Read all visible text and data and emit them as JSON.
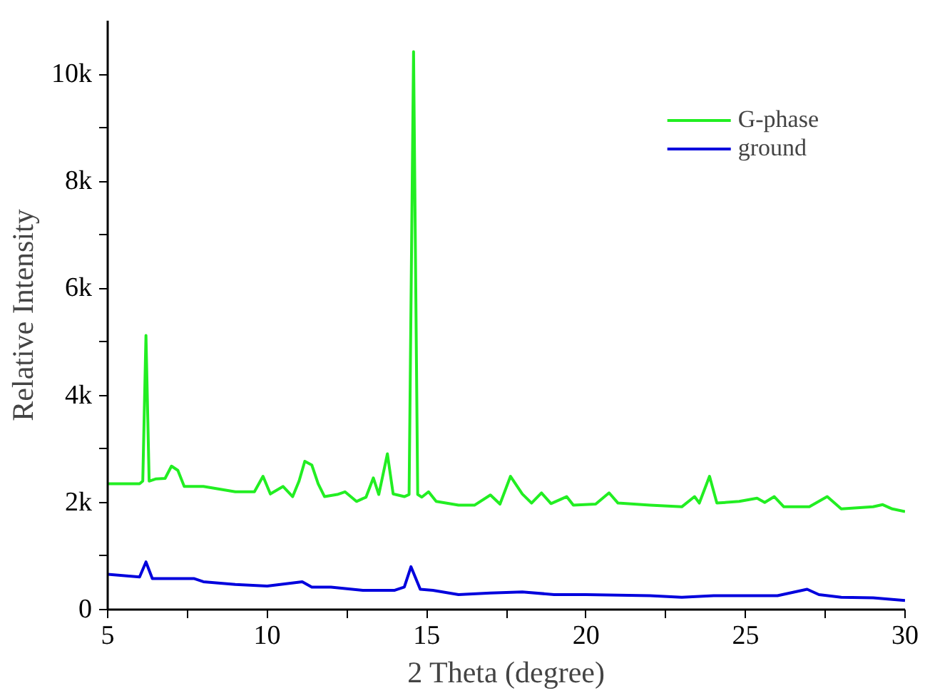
{
  "chart_data": {
    "type": "line",
    "xlabel": "2 Theta (degree)",
    "ylabel": "Relative Intensity",
    "xlim": [
      5,
      30
    ],
    "ylim": [
      0,
      11000
    ],
    "xticks": [
      5,
      {
        "value": 7.5,
        "label": null
      },
      10,
      {
        "value": 12.5,
        "label": null
      },
      15,
      {
        "value": 17.5,
        "label": null
      },
      20,
      {
        "value": 22.5,
        "label": null
      },
      25,
      {
        "value": 27.5,
        "label": null
      },
      30
    ],
    "yticks": [
      0,
      {
        "value": 1000,
        "label": null
      },
      {
        "value": 2000,
        "label": "2k"
      },
      {
        "value": 3000,
        "label": null
      },
      {
        "value": 4000,
        "label": "4k"
      },
      {
        "value": 5000,
        "label": null
      },
      {
        "value": 6000,
        "label": "6k"
      },
      {
        "value": 7000,
        "label": null
      },
      {
        "value": 8000,
        "label": "8k"
      },
      {
        "value": 9000,
        "label": null
      },
      {
        "value": 10000,
        "label": "10k"
      }
    ],
    "grid": false,
    "legend": "top right",
    "line_style": "solid",
    "marker": "none",
    "series": [
      {
        "name": "G-phase",
        "color": "#22ee22",
        "x": [
          5,
          6.0,
          6.1,
          6.2,
          6.3,
          6.5,
          6.8,
          7.0,
          7.2,
          7.4,
          8,
          9,
          9.6,
          9.87,
          10.1,
          10.5,
          10.8,
          11.0,
          11.18,
          11.4,
          11.6,
          11.8,
          12.2,
          12.44,
          12.8,
          13.1,
          13.33,
          13.5,
          13.77,
          13.95,
          14.3,
          14.45,
          14.59,
          14.72,
          14.85,
          15.06,
          15.3,
          16,
          16.5,
          17.0,
          17.3,
          17.63,
          18.0,
          18.29,
          18.6,
          18.9,
          19.39,
          19.6,
          20.3,
          20.72,
          21,
          22,
          23,
          23.4,
          23.55,
          23.87,
          24.1,
          24.8,
          25.36,
          25.6,
          25.9,
          26.2,
          27,
          27.56,
          28,
          29,
          29.3,
          29.6,
          30
        ],
        "values": [
          2350,
          2350,
          2400,
          5120,
          2400,
          2440,
          2450,
          2680,
          2600,
          2300,
          2300,
          2200,
          2200,
          2490,
          2160,
          2300,
          2110,
          2400,
          2770,
          2700,
          2350,
          2110,
          2150,
          2200,
          2020,
          2100,
          2460,
          2150,
          2910,
          2160,
          2110,
          2150,
          10420,
          2150,
          2100,
          2200,
          2020,
          1950,
          1950,
          2140,
          1970,
          2490,
          2160,
          1990,
          2180,
          1980,
          2110,
          1950,
          1970,
          2180,
          1990,
          1950,
          1920,
          2110,
          1990,
          2490,
          1990,
          2020,
          2080,
          2000,
          2110,
          1920,
          1920,
          2110,
          1880,
          1920,
          1960,
          1880,
          1830
        ]
      },
      {
        "name": "ground",
        "color": "#0000dd",
        "x": [
          5,
          6.0,
          6.2,
          6.4,
          7,
          7.7,
          8,
          9,
          10,
          11.1,
          11.4,
          12,
          13,
          14,
          14.3,
          14.51,
          14.8,
          15.2,
          16,
          17,
          18,
          19,
          20,
          22,
          23,
          24,
          25,
          26,
          26.93,
          27.3,
          28,
          29,
          30
        ],
        "values": [
          660,
          610,
          890,
          580,
          580,
          580,
          520,
          470,
          440,
          520,
          420,
          420,
          360,
          360,
          420,
          800,
          380,
          360,
          280,
          310,
          330,
          280,
          280,
          260,
          230,
          260,
          260,
          260,
          380,
          280,
          230,
          220,
          170
        ]
      }
    ]
  }
}
